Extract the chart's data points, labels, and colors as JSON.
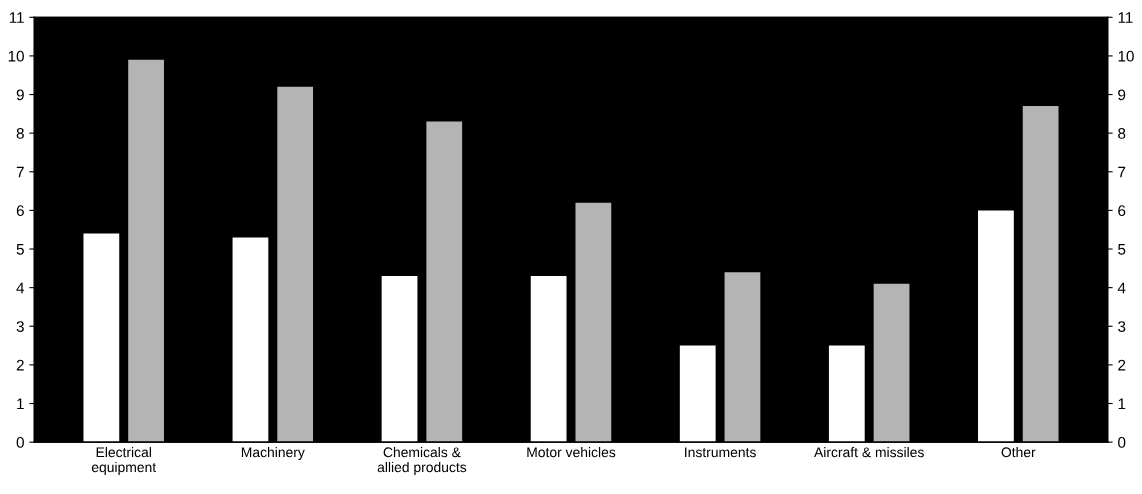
{
  "chart_data": {
    "type": "bar",
    "categories": [
      "Electrical\nequipment",
      "Machinery",
      "Chemicals &\nallied products",
      "Motor vehicles",
      "Instruments",
      "Aircraft & missiles",
      "Other"
    ],
    "series": [
      {
        "color": "#ffffff",
        "values": [
          5.4,
          5.3,
          4.3,
          4.3,
          2.5,
          2.5,
          6.0
        ]
      },
      {
        "color": "#b4b4b4",
        "values": [
          9.9,
          9.2,
          8.3,
          6.2,
          4.4,
          4.1,
          8.7
        ]
      }
    ],
    "ylim": [
      0,
      11
    ],
    "yticks": [
      0,
      1,
      2,
      3,
      4,
      5,
      6,
      7,
      8,
      9,
      10,
      11
    ],
    "y2lim": [
      0,
      11
    ],
    "y2ticks": [
      0,
      1,
      2,
      3,
      4,
      5,
      6,
      7,
      8,
      9,
      10,
      11
    ],
    "grid": false,
    "legend": false
  }
}
